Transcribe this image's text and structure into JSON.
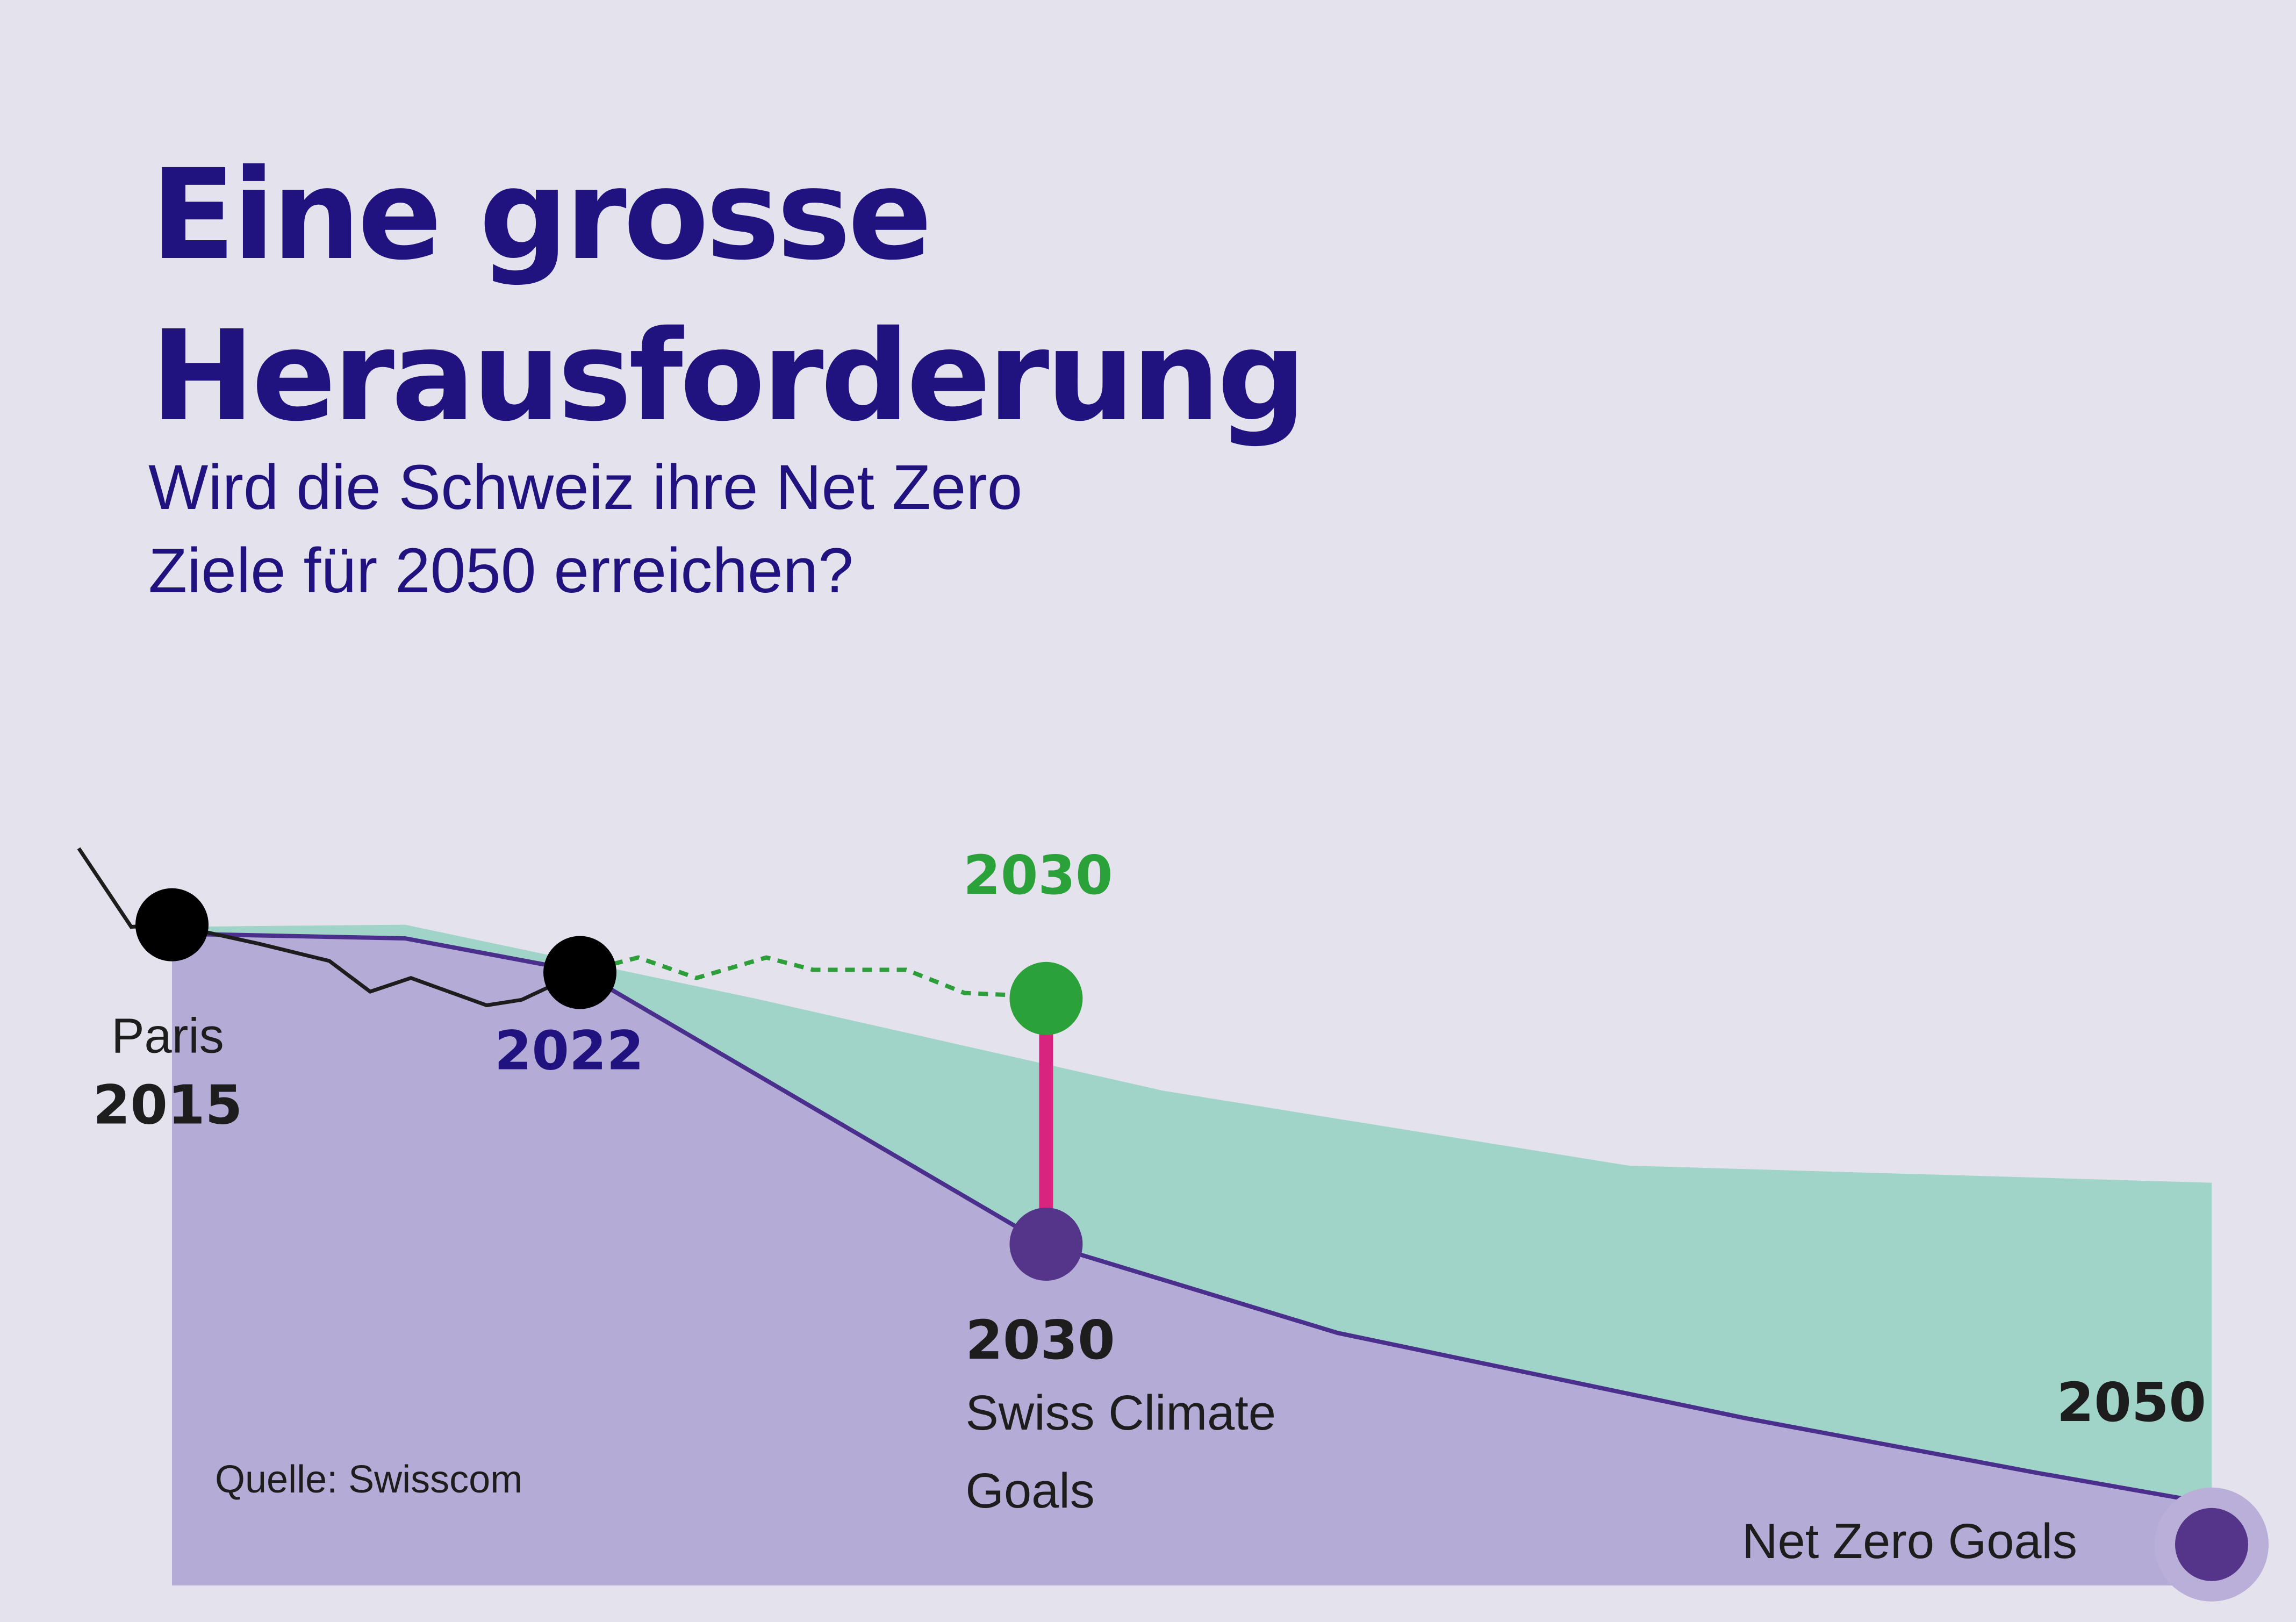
{
  "title_lines": [
    "Eine grosse",
    "Herausforderung"
  ],
  "subtitle_lines": [
    "Wird die Schweiz ihre Net Zero",
    "Ziele für 2050 erreichen?"
  ],
  "source": "Quelle: Swisscom",
  "colors": {
    "background": "#e4e2ec",
    "title": "#21137f",
    "teal_area": "#a0d4c8",
    "purple_area": "#b4acd6",
    "target_line": "#4a2f8c",
    "history_line": "#1d1d1d",
    "projection_dots": "#2d9e3a",
    "gap_bar": "#d8247e",
    "milestone_black": "#000000",
    "milestone_green": "#2ba13a",
    "milestone_purple": "#54358a",
    "net_zero_halo": "#b9afd8",
    "label_dark": "#1d1d1d",
    "label_navy": "#21137f",
    "label_green": "#2ba13a"
  },
  "chart_data": {
    "type": "area",
    "title": "",
    "xlabel": "",
    "ylabel": "",
    "x_range": [
      2015,
      2050
    ],
    "y_axis": "unlabeled relative emissions index",
    "y_range": [
      0,
      100
    ],
    "grid": false,
    "legend": "none",
    "series": [
      {
        "kind": "area",
        "color": "#a0d4c8",
        "points": [
          {
            "x": 2015,
            "y": 96.5
          },
          {
            "x": 2019,
            "y": 96.8
          },
          {
            "x": 2025,
            "y": 86.0
          },
          {
            "x": 2032,
            "y": 72.5
          },
          {
            "x": 2040,
            "y": 61.5
          },
          {
            "x": 2050,
            "y": 59.0
          }
        ]
      },
      {
        "kind": "area+line",
        "color": "#b4acd6",
        "line_color": "#4a2f8c",
        "points": [
          {
            "x": 2015,
            "y": 95.5
          },
          {
            "x": 2019,
            "y": 94.8
          },
          {
            "x": 2022,
            "y": 90.0
          },
          {
            "x": 2030,
            "y": 50.0
          },
          {
            "x": 2035,
            "y": 37.0
          },
          {
            "x": 2042,
            "y": 24.5
          },
          {
            "x": 2047,
            "y": 16.5
          },
          {
            "x": 2050,
            "y": 12.0
          }
        ]
      },
      {
        "kind": "line",
        "color": "#1d1d1d",
        "points": [
          {
            "x": 2013.4,
            "y": 108.0
          },
          {
            "x": 2014.3,
            "y": 96.5
          },
          {
            "x": 2015.0,
            "y": 96.8
          },
          {
            "x": 2016.5,
            "y": 94.0
          },
          {
            "x": 2017.7,
            "y": 91.5
          },
          {
            "x": 2018.4,
            "y": 87.0
          },
          {
            "x": 2019.1,
            "y": 89.0
          },
          {
            "x": 2020.4,
            "y": 85.0
          },
          {
            "x": 2021.0,
            "y": 85.8
          },
          {
            "x": 2022.0,
            "y": 89.8
          }
        ]
      },
      {
        "kind": "dotted-line",
        "color": "#2d9e3a",
        "points": [
          {
            "x": 2022.0,
            "y": 89.8
          },
          {
            "x": 2023.0,
            "y": 92.0
          },
          {
            "x": 2024.0,
            "y": 89.0
          },
          {
            "x": 2025.2,
            "y": 92.0
          },
          {
            "x": 2026.0,
            "y": 90.2
          },
          {
            "x": 2027.6,
            "y": 90.2
          },
          {
            "x": 2028.6,
            "y": 86.8
          },
          {
            "x": 2029.4,
            "y": 86.5
          }
        ]
      },
      {
        "kind": "gap-bar",
        "color": "#d8247e",
        "x": 2030,
        "y_from": 86.0,
        "y_to": 50.0
      }
    ],
    "milestones": [
      {
        "year_label": "2015",
        "caption": "Paris",
        "x": 2015,
        "y": 96.8,
        "color": "#000000",
        "label_color": "#1d1d1d"
      },
      {
        "year_label": "2022",
        "caption": "",
        "x": 2022,
        "y": 89.8,
        "color": "#000000",
        "label_color": "#21137f"
      },
      {
        "year_label": "2030",
        "caption": "",
        "x": 2030,
        "y": 86.0,
        "color": "#2ba13a",
        "label_color": "#2ba13a"
      },
      {
        "year_label": "2030",
        "caption": "Swiss Climate Goals",
        "x": 2030,
        "y": 50.0,
        "color": "#54358a",
        "label_color": "#1d1d1d"
      },
      {
        "year_label": "2050",
        "caption": "Net Zero Goals",
        "x": 2050,
        "y": 6.0,
        "color": "#54358a",
        "label_color": "#1d1d1d",
        "halo": "#b9afd8"
      }
    ]
  }
}
